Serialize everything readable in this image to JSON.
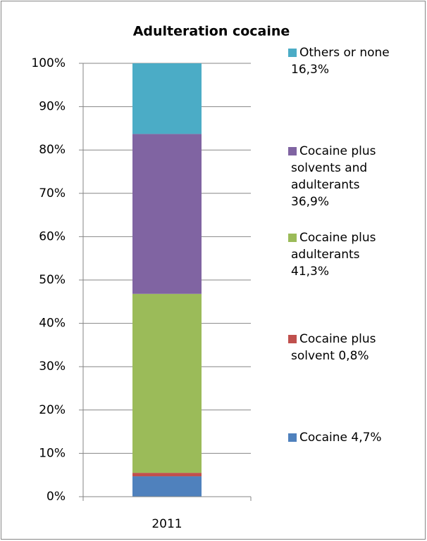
{
  "chart_data": {
    "type": "stacked_bar",
    "title": "Adulteration cocaine",
    "categories": [
      "2011"
    ],
    "series": [
      {
        "name": "Cocaine 4,7%",
        "color": "#4f81bd",
        "values": [
          4.7
        ]
      },
      {
        "name": "Cocaine plus solvent 0,8%",
        "color": "#c0504d",
        "values": [
          0.8
        ]
      },
      {
        "name": "Cocaine plus adulterants 41,3%",
        "color": "#9bbb59",
        "values": [
          41.3
        ]
      },
      {
        "name": "Cocaine plus solvents and adulterants 36,9%",
        "color": "#8064a2",
        "values": [
          36.9
        ]
      },
      {
        "name": "Others or none 16,3%",
        "color": "#4bacc6",
        "values": [
          16.3
        ]
      }
    ],
    "ylim": [
      0,
      100
    ],
    "yticks": [
      {
        "value": 0,
        "label": "0%"
      },
      {
        "value": 10,
        "label": "10%"
      },
      {
        "value": 20,
        "label": "20%"
      },
      {
        "value": 30,
        "label": "30%"
      },
      {
        "value": 40,
        "label": "40%"
      },
      {
        "value": 50,
        "label": "50%"
      },
      {
        "value": 60,
        "label": "60%"
      },
      {
        "value": 70,
        "label": "70%"
      },
      {
        "value": 80,
        "label": "80%"
      },
      {
        "value": 90,
        "label": "90%"
      },
      {
        "value": 100,
        "label": "100%"
      }
    ],
    "grid": true,
    "legend": "right"
  }
}
